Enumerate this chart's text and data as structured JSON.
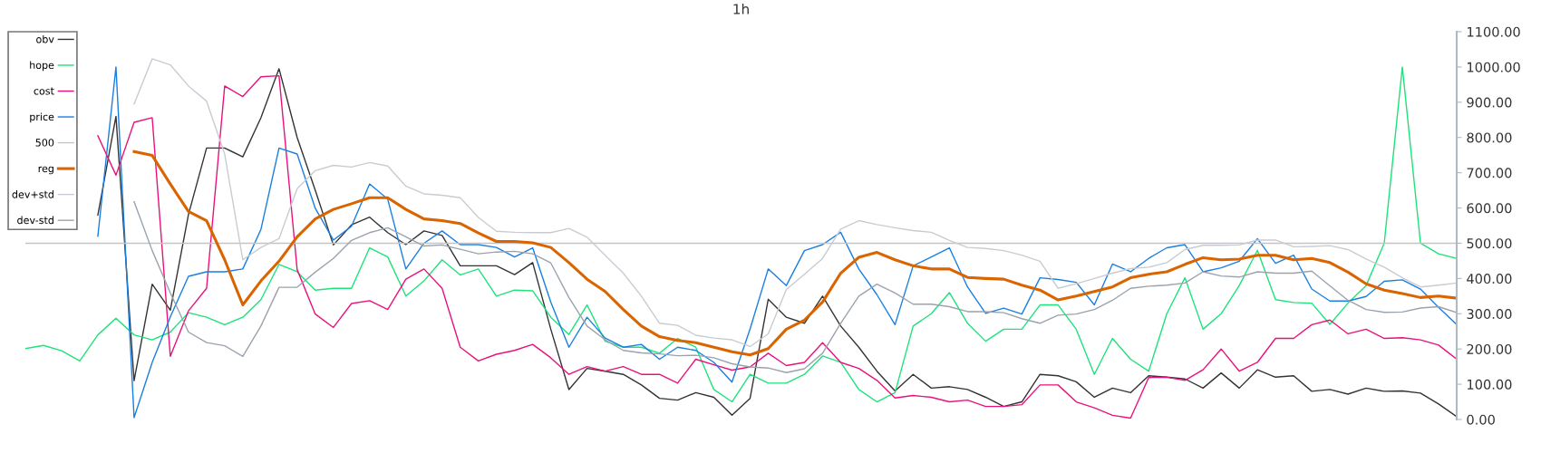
{
  "chart_data": {
    "type": "line",
    "title": "1h",
    "categories": [
      null,
      null,
      null,
      null,
      null,
      null,
      null,
      null,
      null,
      null,
      null,
      null,
      null,
      null,
      null,
      null,
      null,
      null,
      null,
      null,
      null,
      null,
      null,
      null,
      null,
      null,
      null,
      null,
      null,
      null,
      null,
      null,
      null,
      null,
      null,
      null,
      null,
      null,
      null,
      null,
      null,
      null,
      null,
      null,
      null,
      null,
      null,
      null,
      null,
      null,
      null,
      null,
      null,
      null,
      null,
      null,
      null,
      null,
      null,
      null,
      null,
      null,
      null,
      null,
      null,
      null,
      null,
      null,
      null,
      null,
      null,
      null,
      null,
      null,
      null,
      null,
      null,
      null,
      null,
      null
    ],
    "series": [
      {
        "name": "obv",
        "color": "#333333",
        "values": [
          null,
          null,
          null,
          null,
          580,
          860,
          110,
          384,
          310,
          581,
          770,
          770,
          745,
          856,
          995,
          800,
          650,
          495,
          552,
          574,
          530,
          496,
          535,
          522,
          436,
          436,
          436,
          411,
          445,
          256,
          85,
          145,
          137,
          128,
          98,
          60,
          55,
          76,
          63,
          12,
          60,
          341,
          290,
          273,
          350,
          265,
          205,
          137,
          81,
          128,
          89,
          93,
          85,
          63,
          37,
          50,
          128,
          124,
          107,
          63,
          89,
          76,
          124,
          120,
          115,
          89,
          132,
          89,
          141,
          120,
          124,
          80,
          85,
          72,
          89,
          80,
          81,
          75,
          44,
          8
        ]
      },
      {
        "name": "hope",
        "color": "#1ee27a",
        "values": [
          201,
          210,
          195,
          166,
          240,
          287,
          240,
          226,
          248,
          303,
          290,
          269,
          290,
          340,
          440,
          419,
          367,
          372,
          372,
          487,
          461,
          350,
          393,
          453,
          410,
          427,
          350,
          367,
          365,
          290,
          241,
          325,
          222,
          205,
          205,
          188,
          230,
          205,
          85,
          50,
          128,
          103,
          103,
          128,
          180,
          162,
          85,
          50,
          76,
          265,
          300,
          360,
          273,
          222,
          256,
          256,
          325,
          325,
          256,
          128,
          230,
          171,
          137,
          300,
          402,
          256,
          300,
          380,
          480,
          340,
          332,
          330,
          270,
          330,
          380,
          500,
          1000,
          500,
          470,
          457
        ]
      },
      {
        "name": "cost",
        "color": "#e8127c",
        "values": [
          null,
          null,
          null,
          null,
          805,
          693,
          843,
          856,
          179,
          308,
          372,
          946,
          916,
          972,
          975,
          425,
          299,
          261,
          329,
          337,
          312,
          398,
          427,
          372,
          205,
          166,
          185,
          196,
          213,
          175,
          128,
          150,
          137,
          150,
          128,
          128,
          103,
          171,
          155,
          140,
          149,
          188,
          153,
          162,
          218,
          162,
          145,
          111,
          61,
          68,
          63,
          50,
          55,
          37,
          37,
          42,
          98,
          98,
          50,
          33,
          12,
          4,
          119,
          120,
          111,
          141,
          200,
          137,
          162,
          230,
          230,
          269,
          282,
          243,
          256,
          230,
          232,
          226,
          211,
          171
        ]
      },
      {
        "name": "price",
        "color": "#1a7fe0",
        "values": [
          null,
          null,
          null,
          null,
          520,
          1000,
          5,
          162,
          291,
          406,
          419,
          419,
          427,
          539,
          770,
          753,
          599,
          509,
          548,
          668,
          625,
          427,
          500,
          535,
          496,
          496,
          488,
          461,
          487,
          333,
          205,
          290,
          231,
          205,
          213,
          171,
          205,
          196,
          162,
          106,
          257,
          427,
          380,
          479,
          496,
          531,
          427,
          354,
          269,
          436,
          461,
          487,
          376,
          301,
          316,
          299,
          402,
          397,
          389,
          325,
          441,
          419,
          457,
          487,
          496,
          419,
          430,
          449,
          513,
          443,
          466,
          370,
          336,
          336,
          349,
          392,
          396,
          370,
          318,
          269
        ]
      },
      {
        "name": "500",
        "color": "#c4c4c4",
        "values": [
          500,
          500,
          500,
          500,
          500,
          500,
          500,
          500,
          500,
          500,
          500,
          500,
          500,
          500,
          500,
          500,
          500,
          500,
          500,
          500,
          500,
          500,
          500,
          500,
          500,
          500,
          500,
          500,
          500,
          500,
          500,
          500,
          500,
          500,
          500,
          500,
          500,
          500,
          500,
          500,
          500,
          500,
          500,
          500,
          500,
          500,
          500,
          500,
          500,
          500,
          500,
          500,
          500,
          500,
          500,
          500,
          500,
          500,
          500,
          500,
          500,
          500,
          500,
          500,
          500,
          500,
          500,
          500,
          500,
          500,
          500,
          500,
          500,
          500,
          500,
          500,
          500,
          500,
          500,
          500
        ]
      },
      {
        "name": "reg",
        "color": "#d96400",
        "values": [
          null,
          null,
          null,
          null,
          null,
          null,
          760,
          749,
          668,
          590,
          564,
          453,
          325,
          393,
          449,
          518,
          569,
          596,
          612,
          629,
          629,
          596,
          569,
          564,
          556,
          529,
          505,
          505,
          501,
          488,
          445,
          398,
          363,
          312,
          265,
          235,
          224,
          218,
          205,
          192,
          183,
          201,
          256,
          282,
          333,
          415,
          460,
          474,
          453,
          436,
          427,
          427,
          403,
          400,
          398,
          381,
          367,
          339,
          350,
          363,
          376,
          402,
          412,
          419,
          440,
          459,
          453,
          455,
          466,
          466,
          453,
          457,
          445,
          418,
          385,
          367,
          357,
          346,
          350,
          344
        ]
      },
      {
        "name": "dev+std",
        "color": "#c8ccd2",
        "values": [
          null,
          null,
          null,
          null,
          null,
          null,
          895,
          1023,
          1006,
          946,
          903,
          753,
          453,
          488,
          513,
          655,
          706,
          721,
          716,
          729,
          719,
          662,
          640,
          636,
          629,
          573,
          534,
          531,
          530,
          530,
          542,
          517,
          466,
          415,
          350,
          273,
          267,
          239,
          231,
          226,
          207,
          243,
          369,
          412,
          457,
          540,
          564,
          553,
          544,
          536,
          531,
          508,
          488,
          485,
          479,
          466,
          449,
          372,
          385,
          400,
          415,
          428,
          432,
          445,
          482,
          494,
          494,
          495,
          509,
          509,
          490,
          491,
          493,
          482,
          455,
          432,
          402,
          376,
          381,
          387
        ]
      },
      {
        "name": "dev-std",
        "color": "#9aa3ad",
        "values": [
          null,
          null,
          null,
          null,
          null,
          null,
          618,
          479,
          359,
          248,
          218,
          209,
          179,
          265,
          375,
          375,
          418,
          457,
          508,
          530,
          544,
          518,
          492,
          495,
          483,
          470,
          475,
          477,
          470,
          444,
          346,
          265,
          226,
          196,
          189,
          186,
          181,
          182,
          175,
          158,
          149,
          146,
          133,
          144,
          188,
          273,
          350,
          384,
          359,
          327,
          327,
          320,
          306,
          306,
          303,
          286,
          273,
          296,
          299,
          312,
          338,
          372,
          378,
          381,
          387,
          419,
          407,
          404,
          419,
          415,
          415,
          421,
          379,
          338,
          312,
          304,
          305,
          316,
          320,
          303
        ]
      }
    ],
    "ylim": [
      0,
      1100
    ],
    "yticks": [
      {
        "value": 0,
        "label": "0.00"
      },
      {
        "value": 100,
        "label": "100.00"
      },
      {
        "value": 200,
        "label": "200.00"
      },
      {
        "value": 300,
        "label": "300.00"
      },
      {
        "value": 400,
        "label": "400.00"
      },
      {
        "value": 500,
        "label": "500.00"
      },
      {
        "value": 600,
        "label": "600.00"
      },
      {
        "value": 700,
        "label": "700.00"
      },
      {
        "value": 800,
        "label": "800.00"
      },
      {
        "value": 900,
        "label": "900.00"
      },
      {
        "value": 1000,
        "label": "1000.00"
      },
      {
        "value": 1100,
        "label": "1100.00"
      }
    ],
    "tick_labels": "y",
    "legend": "top left",
    "grid": false,
    "line_style": "solid",
    "marker": "none"
  }
}
